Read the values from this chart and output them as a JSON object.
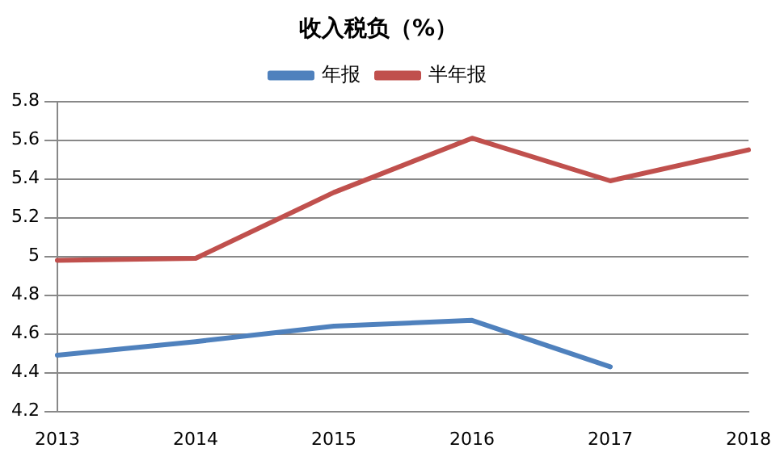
{
  "chart_data": {
    "type": "line",
    "title": "收入税负（%）",
    "categories": [
      "2013",
      "2014",
      "2015",
      "2016",
      "2017",
      "2018"
    ],
    "series": [
      {
        "name": "年报",
        "color": "#4f81bd",
        "values": [
          4.49,
          4.56,
          4.64,
          4.67,
          4.43,
          null
        ]
      },
      {
        "name": "半年报",
        "color": "#c0504d",
        "values": [
          4.98,
          4.99,
          5.33,
          5.61,
          5.39,
          5.55
        ]
      }
    ],
    "ylim": [
      4.2,
      5.8
    ],
    "yticks": [
      4.2,
      4.4,
      4.6,
      4.8,
      5,
      5.2,
      5.4,
      5.6,
      5.8
    ],
    "grid": "y",
    "legend": "top",
    "marker": "none",
    "line_style": "solid"
  }
}
